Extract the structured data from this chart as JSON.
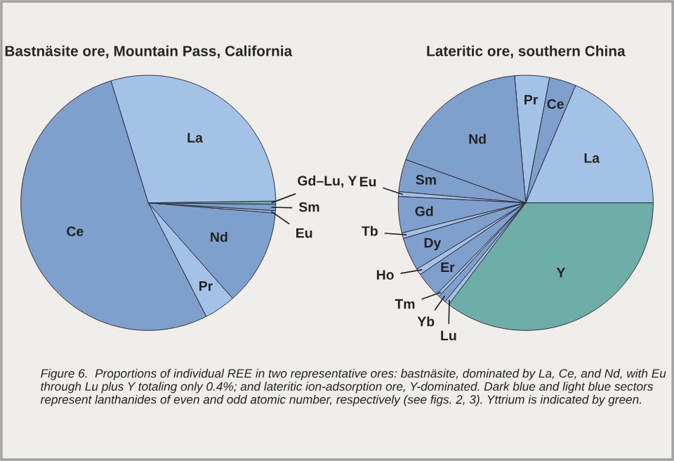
{
  "chart_data": [
    {
      "type": "pie",
      "title": "Bastnäsite ore, Mountain Pass, California",
      "categories": [
        "Ce",
        "Pr",
        "Nd",
        "Eu",
        "Sm",
        "Gd–Lu, Y",
        "La"
      ],
      "values": [
        52.8,
        4.0,
        12.2,
        0.3,
        0.8,
        0.4,
        29.5
      ],
      "colors": [
        "#7f9fcc",
        "#a4c2e6",
        "#7f9fcc",
        "#a4c2e6",
        "#7f9fcc",
        "#6fada8",
        "#a4c2e6"
      ],
      "legend": false
    },
    {
      "type": "pie",
      "title": "Lateritic ore, southern China",
      "categories": [
        "La",
        "Ce",
        "Pr",
        "Nd",
        "Sm",
        "Eu",
        "Gd",
        "Tb",
        "Dy",
        "Ho",
        "Er",
        "Tm",
        "Yb",
        "Lu",
        "Y"
      ],
      "values": [
        18.6,
        3.4,
        4.4,
        18.1,
        4.1,
        0.6,
        4.6,
        0.7,
        4.2,
        0.8,
        3.2,
        0.4,
        1.0,
        0.6,
        35.3
      ],
      "colors": [
        "#a4c2e6",
        "#7f9fcc",
        "#a4c2e6",
        "#7f9fcc",
        "#7f9fcc",
        "#a4c2e6",
        "#7f9fcc",
        "#a4c2e6",
        "#7f9fcc",
        "#a4c2e6",
        "#7f9fcc",
        "#a4c2e6",
        "#7f9fcc",
        "#a4c2e6",
        "#6fada8"
      ],
      "legend": false,
      "annotations": [
        "Figure 6.  Proportions of individual REE in two representative ores: bastnäsite, dominated by La, Ce, and Nd, with Eu through Lu plus Y totaling only 0.4%; and lateritic ion-adsorption ore, Y-dominated. Dark blue and light blue sectors represent lanthanides of even and odd atomic number, respectively (see figs. 2, 3). Yttrium is indicated by green."
      ]
    }
  ]
}
